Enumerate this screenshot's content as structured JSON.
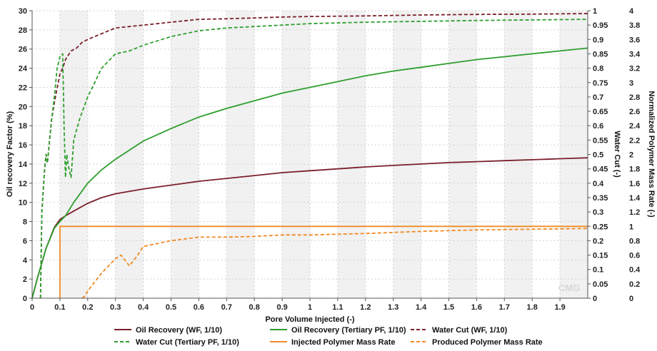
{
  "chart_data": {
    "type": "line",
    "xlabel": "Pore Volume Injected (-)",
    "ylabel_left": "Oil recovery Factor (%)",
    "ylabel_right1": "Water Cut (-)",
    "ylabel_right2": "Normalized Polymer Mass Rate (-)",
    "xlim": [
      0,
      2.0
    ],
    "ylim_left": [
      0,
      30
    ],
    "ylim_right1": [
      0,
      1
    ],
    "ylim_right2": [
      0,
      4
    ],
    "x_ticks": [
      "0",
      "0.1",
      "0.2",
      "0.3",
      "0.4",
      "0.5",
      "0.6",
      "0.7",
      "0.8",
      "0.9",
      "1",
      "1.1",
      "1.2",
      "1.3",
      "1.4",
      "1.5",
      "1.6",
      "1.7",
      "1.8",
      "1.9"
    ],
    "y_left_ticks": [
      "0",
      "2",
      "4",
      "6",
      "8",
      "10",
      "12",
      "14",
      "16",
      "18",
      "20",
      "22",
      "24",
      "26",
      "28",
      "30"
    ],
    "y_right1_ticks": [
      "0",
      "0.05",
      "0.1",
      "0.15",
      "0.2",
      "0.25",
      "0.3",
      "0.35",
      "0.4",
      "0.45",
      "0.5",
      "0.55",
      "0.6",
      "0.65",
      "0.7",
      "0.75",
      "0.8",
      "0.85",
      "0.9",
      "0.95",
      "1"
    ],
    "y_right2_ticks": [
      "0",
      "0.2",
      "0.4",
      "0.6",
      "0.8",
      "1",
      "1.2",
      "1.4",
      "1.6",
      "1.8",
      "2",
      "2.2",
      "2.4",
      "2.6",
      "2.8",
      "3",
      "3.2",
      "3.4",
      "3.6",
      "3.8",
      "4"
    ],
    "grid": true,
    "legend_position": "bottom",
    "watermark": "CMG",
    "series": [
      {
        "name": "Oil Recovery (WF, 1/10)",
        "axis": "left",
        "color": "#7b1f2a",
        "dash": "solid",
        "x": [
          0,
          0.02,
          0.05,
          0.08,
          0.1,
          0.12,
          0.15,
          0.2,
          0.25,
          0.3,
          0.4,
          0.5,
          0.6,
          0.7,
          0.8,
          0.9,
          1.0,
          1.1,
          1.2,
          1.3,
          1.4,
          1.5,
          1.6,
          1.7,
          1.8,
          1.9,
          2.0
        ],
        "y": [
          0,
          2.2,
          5.2,
          7.4,
          8.2,
          8.6,
          9.1,
          9.9,
          10.5,
          10.9,
          11.4,
          11.8,
          12.2,
          12.5,
          12.8,
          13.1,
          13.3,
          13.5,
          13.7,
          13.85,
          14.0,
          14.15,
          14.25,
          14.35,
          14.45,
          14.55,
          14.65
        ]
      },
      {
        "name": "Oil Recovery (Tertiary PF, 1/10)",
        "axis": "left",
        "color": "#2e9e2e",
        "dash": "solid",
        "x": [
          0,
          0.02,
          0.05,
          0.08,
          0.1,
          0.12,
          0.15,
          0.2,
          0.25,
          0.3,
          0.4,
          0.5,
          0.6,
          0.7,
          0.8,
          0.9,
          1.0,
          1.1,
          1.2,
          1.3,
          1.4,
          1.5,
          1.6,
          1.7,
          1.8,
          1.9,
          2.0
        ],
        "y": [
          0,
          2.2,
          5.2,
          7.3,
          8.0,
          8.6,
          10.0,
          12.0,
          13.4,
          14.5,
          16.4,
          17.7,
          18.9,
          19.8,
          20.6,
          21.4,
          22.0,
          22.6,
          23.2,
          23.7,
          24.1,
          24.5,
          24.9,
          25.2,
          25.5,
          25.8,
          26.1
        ]
      },
      {
        "name": "Water Cut (WF, 1/10)",
        "axis": "right1",
        "color": "#7b1f2a",
        "dash": "dashed",
        "x": [
          0.03,
          0.035,
          0.045,
          0.05,
          0.055,
          0.06,
          0.07,
          0.08,
          0.09,
          0.1,
          0.11,
          0.12,
          0.14,
          0.16,
          0.18,
          0.2,
          0.25,
          0.3,
          0.35,
          0.4,
          0.5,
          0.6,
          0.7,
          0.8,
          0.9,
          1.0,
          1.2,
          1.4,
          1.6,
          1.8,
          2.0
        ],
        "y": [
          0,
          0.3,
          0.45,
          0.5,
          0.47,
          0.52,
          0.62,
          0.68,
          0.73,
          0.78,
          0.8,
          0.83,
          0.86,
          0.87,
          0.89,
          0.9,
          0.92,
          0.94,
          0.945,
          0.95,
          0.96,
          0.97,
          0.972,
          0.975,
          0.978,
          0.98,
          0.982,
          0.985,
          0.987,
          0.988,
          0.99
        ]
      },
      {
        "name": "Water Cut (Tertiary PF, 1/10)",
        "axis": "right1",
        "color": "#2e9e2e",
        "dash": "dashed",
        "x": [
          0.03,
          0.035,
          0.045,
          0.05,
          0.055,
          0.06,
          0.07,
          0.08,
          0.09,
          0.1,
          0.11,
          0.115,
          0.12,
          0.125,
          0.13,
          0.14,
          0.15,
          0.17,
          0.2,
          0.25,
          0.3,
          0.35,
          0.4,
          0.5,
          0.6,
          0.7,
          0.8,
          0.9,
          1.0,
          1.2,
          1.4,
          1.6,
          1.8,
          2.0
        ],
        "y": [
          0,
          0.3,
          0.45,
          0.5,
          0.47,
          0.52,
          0.62,
          0.7,
          0.8,
          0.84,
          0.85,
          0.6,
          0.42,
          0.5,
          0.46,
          0.42,
          0.55,
          0.62,
          0.7,
          0.8,
          0.85,
          0.86,
          0.88,
          0.91,
          0.93,
          0.94,
          0.945,
          0.95,
          0.955,
          0.96,
          0.963,
          0.966,
          0.968,
          0.97
        ]
      },
      {
        "name": "Injected Polymer Mass Rate",
        "axis": "right2",
        "color": "#f08a24",
        "dash": "solid",
        "x": [
          0.1,
          0.1,
          2.0
        ],
        "y": [
          0,
          1.0,
          1.0
        ]
      },
      {
        "name": "Produced Polymer Mass Rate",
        "axis": "right2",
        "color": "#f08a24",
        "dash": "dashed",
        "x": [
          0.18,
          0.19,
          0.2,
          0.25,
          0.3,
          0.32,
          0.35,
          0.38,
          0.4,
          0.45,
          0.5,
          0.6,
          0.7,
          0.8,
          0.9,
          1.0,
          1.2,
          1.4,
          1.6,
          1.8,
          2.0
        ],
        "y": [
          0,
          0.03,
          0.1,
          0.35,
          0.55,
          0.6,
          0.45,
          0.6,
          0.72,
          0.76,
          0.8,
          0.85,
          0.85,
          0.86,
          0.88,
          0.88,
          0.9,
          0.93,
          0.95,
          0.96,
          0.97
        ]
      }
    ]
  }
}
